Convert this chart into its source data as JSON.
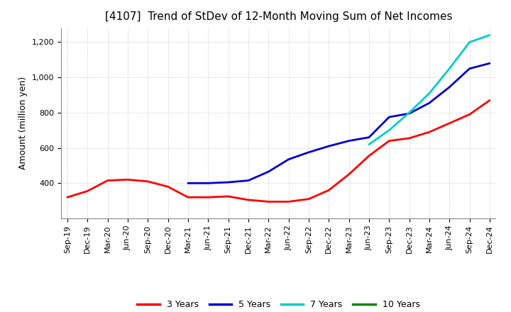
{
  "title": "[4107]  Trend of StDev of 12-Month Moving Sum of Net Incomes",
  "ylabel": "Amount (million yen)",
  "background_color": "#ffffff",
  "grid_color": "#aaaaaa",
  "ylim": [
    200,
    1280
  ],
  "ytick_vals": [
    400,
    600,
    800,
    1000,
    1200
  ],
  "ytick_labels": [
    "400",
    "600",
    "800",
    "1,000",
    "1,200"
  ],
  "x_labels": [
    "Sep-19",
    "Dec-19",
    "Mar-20",
    "Jun-20",
    "Sep-20",
    "Dec-20",
    "Mar-21",
    "Jun-21",
    "Sep-21",
    "Dec-21",
    "Mar-22",
    "Jun-22",
    "Sep-22",
    "Dec-22",
    "Mar-23",
    "Jun-23",
    "Sep-23",
    "Dec-23",
    "Mar-24",
    "Jun-24",
    "Sep-24",
    "Dec-24"
  ],
  "series_order": [
    "3 Years",
    "5 Years",
    "7 Years",
    "10 Years"
  ],
  "series": {
    "3 Years": {
      "color": "#ff0000",
      "linewidth": 2.0,
      "data": [
        320,
        355,
        415,
        420,
        410,
        380,
        320,
        320,
        325,
        305,
        295,
        295,
        310,
        360,
        450,
        555,
        640,
        655,
        690,
        740,
        790,
        870
      ]
    },
    "5 Years": {
      "color": "#0000cc",
      "linewidth": 2.0,
      "data": [
        null,
        null,
        null,
        null,
        null,
        null,
        400,
        400,
        405,
        415,
        465,
        535,
        575,
        610,
        640,
        660,
        775,
        795,
        855,
        945,
        1050,
        1080
      ]
    },
    "7 Years": {
      "color": "#00cccc",
      "linewidth": 2.0,
      "data": [
        null,
        null,
        null,
        null,
        null,
        null,
        null,
        null,
        null,
        null,
        null,
        null,
        null,
        null,
        null,
        620,
        700,
        800,
        910,
        1050,
        1200,
        1240
      ]
    },
    "10 Years": {
      "color": "#008800",
      "linewidth": 2.0,
      "data": [
        null,
        null,
        null,
        null,
        null,
        null,
        null,
        null,
        null,
        null,
        null,
        null,
        null,
        null,
        null,
        null,
        null,
        null,
        null,
        null,
        null,
        null
      ]
    }
  },
  "legend_labels": [
    "3 Years",
    "5 Years",
    "7 Years",
    "10 Years"
  ],
  "legend_colors": [
    "#ff0000",
    "#0000cc",
    "#00cccc",
    "#008800"
  ],
  "title_fontsize": 11,
  "ylabel_fontsize": 9,
  "tick_fontsize": 8
}
